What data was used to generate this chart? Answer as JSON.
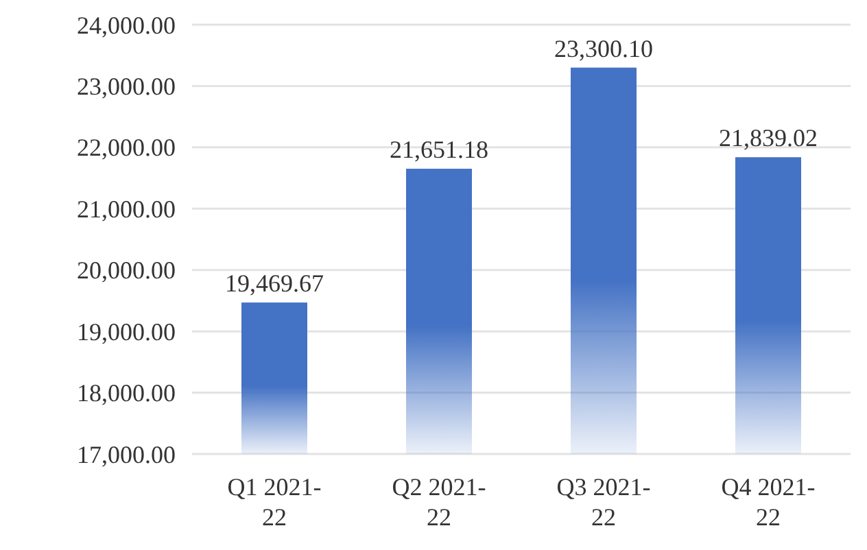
{
  "chart_data": {
    "type": "bar",
    "categories": [
      "Q1 2021-22",
      "Q2 2021-22",
      "Q3 2021-22",
      "Q4 2021-22"
    ],
    "values": [
      19469.67,
      21651.18,
      23300.1,
      21839.02
    ],
    "color": "#4472c4",
    "ylim": [
      17000,
      24000
    ],
    "yticks": [
      {
        "value": 17000,
        "label": "17,000.00"
      },
      {
        "value": 18000,
        "label": "18,000.00"
      },
      {
        "value": 19000,
        "label": "19,000.00"
      },
      {
        "value": 20000,
        "label": "20,000.00"
      },
      {
        "value": 21000,
        "label": "21,000.00"
      },
      {
        "value": 22000,
        "label": "22,000.00"
      },
      {
        "value": 23000,
        "label": "23,000.00"
      },
      {
        "value": 24000,
        "label": "24,000.00"
      }
    ],
    "grid": "y",
    "value_labels": [
      "19,469.67",
      "21,651.18",
      "23,300.10",
      "21,839.02"
    ]
  }
}
